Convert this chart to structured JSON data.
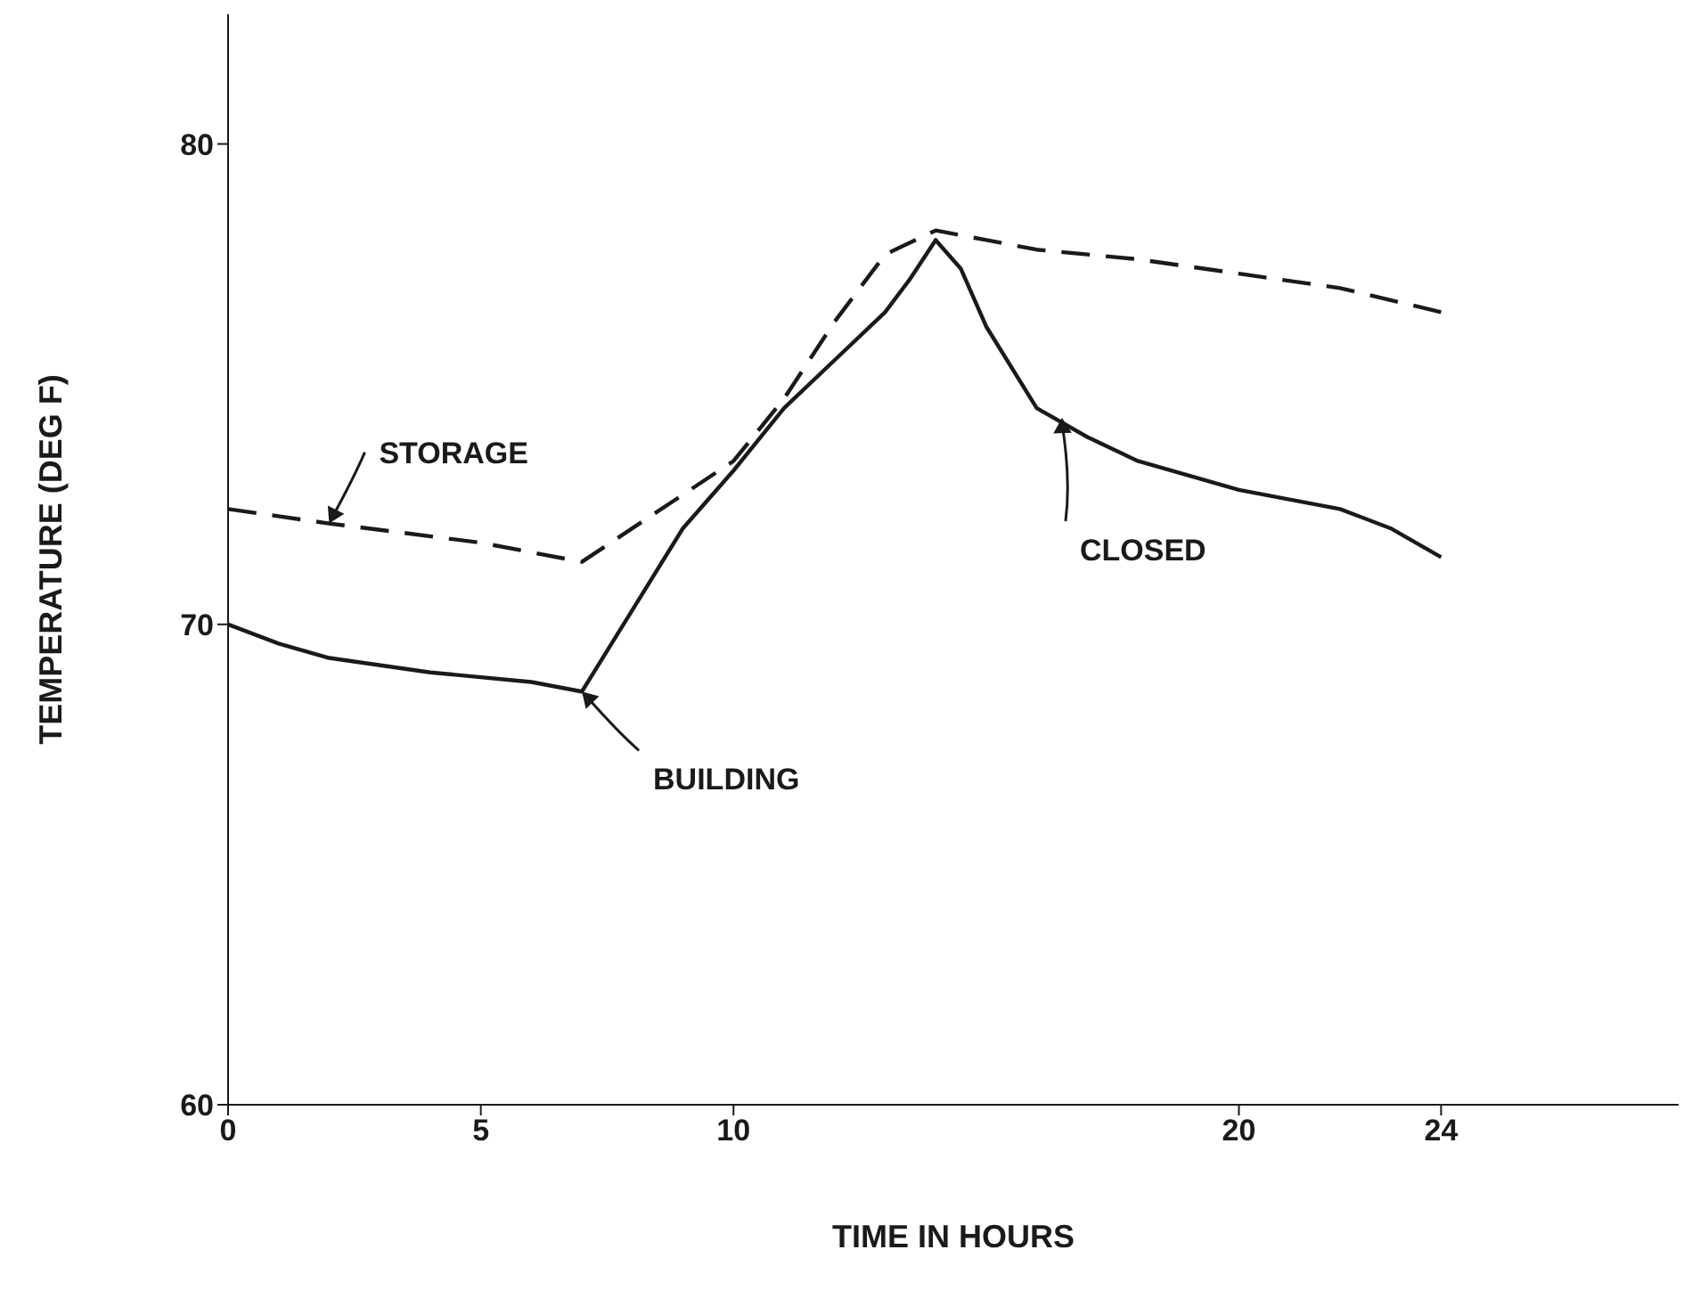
{
  "chart_data": {
    "type": "line",
    "xlabel": "TIME IN HOURS",
    "ylabel": "TEMPERATURE (DEG F)",
    "xlim": [
      0,
      28.7
    ],
    "xticks": [
      0,
      5,
      10,
      20,
      24
    ],
    "ylim": [
      60,
      82.7
    ],
    "yticks": [
      60,
      70,
      80
    ],
    "marker": "none",
    "series": [
      {
        "name": "STORAGE",
        "color": "#1a1a1a",
        "line_style": "dashed",
        "x": [
          0,
          2,
          5,
          7,
          8,
          10,
          11,
          12,
          13,
          14,
          15,
          16,
          18,
          20,
          22,
          24
        ],
        "values": [
          72.4,
          72.1,
          71.7,
          71.3,
          72.0,
          73.4,
          74.7,
          76.3,
          77.7,
          78.2,
          78.0,
          77.8,
          77.6,
          77.3,
          77.0,
          76.5
        ]
      },
      {
        "name": "BUILDING",
        "color": "#1a1a1a",
        "line_style": "solid",
        "x": [
          0,
          1,
          2,
          4,
          6,
          7,
          8,
          9,
          10,
          11,
          12,
          13,
          13.5,
          14,
          14.5,
          15,
          16,
          17,
          18,
          20,
          22,
          23,
          24
        ],
        "values": [
          70.0,
          69.6,
          69.3,
          69.0,
          68.8,
          68.6,
          70.3,
          72.0,
          73.2,
          74.5,
          75.5,
          76.5,
          77.2,
          78.0,
          77.4,
          76.2,
          74.5,
          73.9,
          73.4,
          72.8,
          72.4,
          72.0,
          71.4
        ]
      }
    ],
    "annotations": [
      {
        "text": "CLOSED",
        "x": 16.5,
        "y": 74.3
      }
    ]
  }
}
